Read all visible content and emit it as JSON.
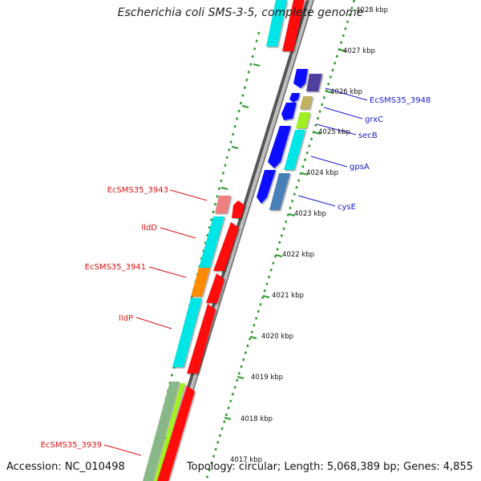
{
  "title": "Escherichia coli SMS-3-5, complete genome",
  "footer": {
    "accession": "Accession: NC_010498",
    "summary": "Topology: circular; Length: 5,068,389 bp; Genes: 4,855"
  },
  "colors": {
    "backbone": "#9a9a9a",
    "ruler_dots": "#2e9b2e",
    "reverse_label": "#dd1111",
    "forward_label": "#1a1ad0"
  },
  "kbp_ticks": [
    "4017 kbp",
    "4018 kbp",
    "4019 kbp",
    "4020 kbp",
    "4021 kbp",
    "4022 kbp",
    "4023 kbp",
    "4024 kbp",
    "4025 kbp",
    "4026 kbp",
    "4027 kbp",
    "4028 kbp"
  ],
  "gene_labels_left": [
    "EcSMS35_3943",
    "lldD",
    "EcSMS35_3941",
    "lldP",
    "EcSMS35_3939"
  ],
  "gene_labels_right": [
    "EcSMS35_3948",
    "grxC",
    "secB",
    "gpsA",
    "cysE"
  ]
}
